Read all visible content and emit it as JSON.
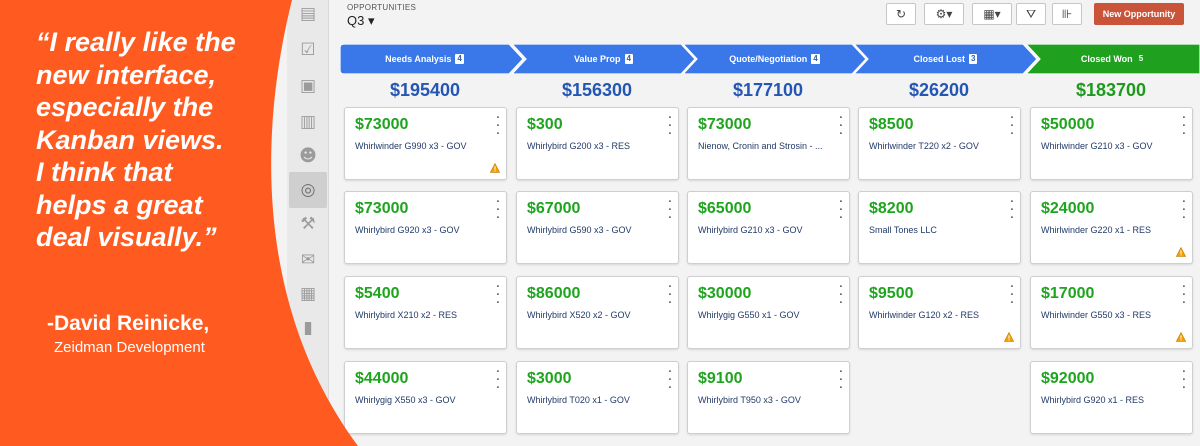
{
  "quote": {
    "lines": [
      "“I really like the",
      "new interface,",
      "especially the",
      "Kanban views.",
      "I think that",
      "helps a great",
      "deal visually.”"
    ],
    "author": "-David Reinicke,",
    "company": "Zeidman Development",
    "panel_color": "#ff5a1f"
  },
  "header": {
    "section_label": "OPPORTUNITIES",
    "period": "Q3 ▾",
    "new_button": "New Opportunity",
    "refresh_glyph": "↻",
    "settings_glyph": "⚙▾",
    "grid_glyph": "▦▾",
    "filter_glyph": "⛛",
    "chart_glyph": "⊪"
  },
  "rail_icons": [
    "dashboard-icon",
    "check-icon",
    "contacts-icon",
    "buildings-icon",
    "users-icon",
    "target-icon",
    "hammer-icon",
    "mail-icon",
    "calendar-icon",
    "reports-icon"
  ],
  "stages": [
    {
      "name": "Needs Analysis",
      "count": "4",
      "total": "$195400",
      "color": "#3a78ea"
    },
    {
      "name": "Value Prop",
      "count": "4",
      "total": "$156300",
      "color": "#3a78ea"
    },
    {
      "name": "Quote/Negotiation",
      "count": "4",
      "total": "$177100",
      "color": "#3a78ea"
    },
    {
      "name": "Closed Lost",
      "count": "3",
      "total": "$26200",
      "color": "#3a78ea"
    },
    {
      "name": "Closed Won",
      "count": "5",
      "total": "$183700",
      "color": "#1fa01f"
    }
  ],
  "cards": [
    [
      {
        "amount": "$73000",
        "name": "Whirlwinder G990 x3 - GOV",
        "warn": true
      },
      {
        "amount": "$73000",
        "name": "Whirlybird G920 x3 - GOV",
        "warn": false
      },
      {
        "amount": "$5400",
        "name": "Whirlybird X210 x2 - RES",
        "warn": false
      },
      {
        "amount": "$44000",
        "name": "Whirlygig X550 x3 - GOV",
        "warn": false
      }
    ],
    [
      {
        "amount": "$300",
        "name": "Whirlybird G200 x3 - RES",
        "warn": false
      },
      {
        "amount": "$67000",
        "name": "Whirlybird G590 x3 - GOV",
        "warn": false
      },
      {
        "amount": "$86000",
        "name": "Whirlybird X520 x2 - GOV",
        "warn": false
      },
      {
        "amount": "$3000",
        "name": "Whirlybird T020 x1 - GOV",
        "warn": false
      }
    ],
    [
      {
        "amount": "$73000",
        "name": "Nienow, Cronin and Strosin - ...",
        "warn": false
      },
      {
        "amount": "$65000",
        "name": "Whirlybird G210 x3 - GOV",
        "warn": false
      },
      {
        "amount": "$30000",
        "name": "Whirlygig G550 x1 - GOV",
        "warn": false
      },
      {
        "amount": "$9100",
        "name": "Whirlybird T950 x3 - GOV",
        "warn": false
      }
    ],
    [
      {
        "amount": "$8500",
        "name": "Whirlwinder T220 x2 - GOV",
        "warn": false
      },
      {
        "amount": "$8200",
        "name": "Small Tones LLC",
        "warn": false
      },
      {
        "amount": "$9500",
        "name": "Whirlwinder G120 x2 - RES",
        "warn": true
      }
    ],
    [
      {
        "amount": "$50000",
        "name": "Whirlwinder G210 x3 - GOV",
        "warn": false
      },
      {
        "amount": "$24000",
        "name": "Whirlwinder G220 x1 - RES",
        "warn": true
      },
      {
        "amount": "$17000",
        "name": "Whirlwinder G550 x3 - RES",
        "warn": true
      },
      {
        "amount": "$92000",
        "name": "Whirlybird G920 x1 - RES",
        "warn": false
      }
    ]
  ]
}
